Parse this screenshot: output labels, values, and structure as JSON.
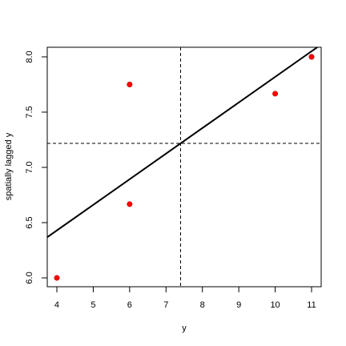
{
  "chart_data": {
    "type": "scatter",
    "xlabel": "y",
    "ylabel": "spatially lagged y",
    "x": [
      4,
      6,
      6,
      10,
      11
    ],
    "series": [
      {
        "values": [
          6.0,
          6.667,
          7.75,
          7.667,
          8.0
        ],
        "color": "#ff0000"
      }
    ],
    "xlim": [
      3.736,
      11.264
    ],
    "ylim": [
      5.92,
      8.087
    ],
    "xticks": [
      4,
      5,
      6,
      7,
      8,
      9,
      10,
      11
    ],
    "yticks": [
      {
        "value": 6,
        "label": "6.0"
      },
      {
        "value": 6.5,
        "label": "6.5"
      },
      {
        "value": 7,
        "label": "7.0"
      },
      {
        "value": 7.5,
        "label": "7.5"
      },
      {
        "value": 8,
        "label": "8.0"
      }
    ],
    "reference_lines": {
      "x": 7.4,
      "y": 7.217
    },
    "fit_line": {
      "intercept": 5.503,
      "slope": 0.2316
    }
  }
}
